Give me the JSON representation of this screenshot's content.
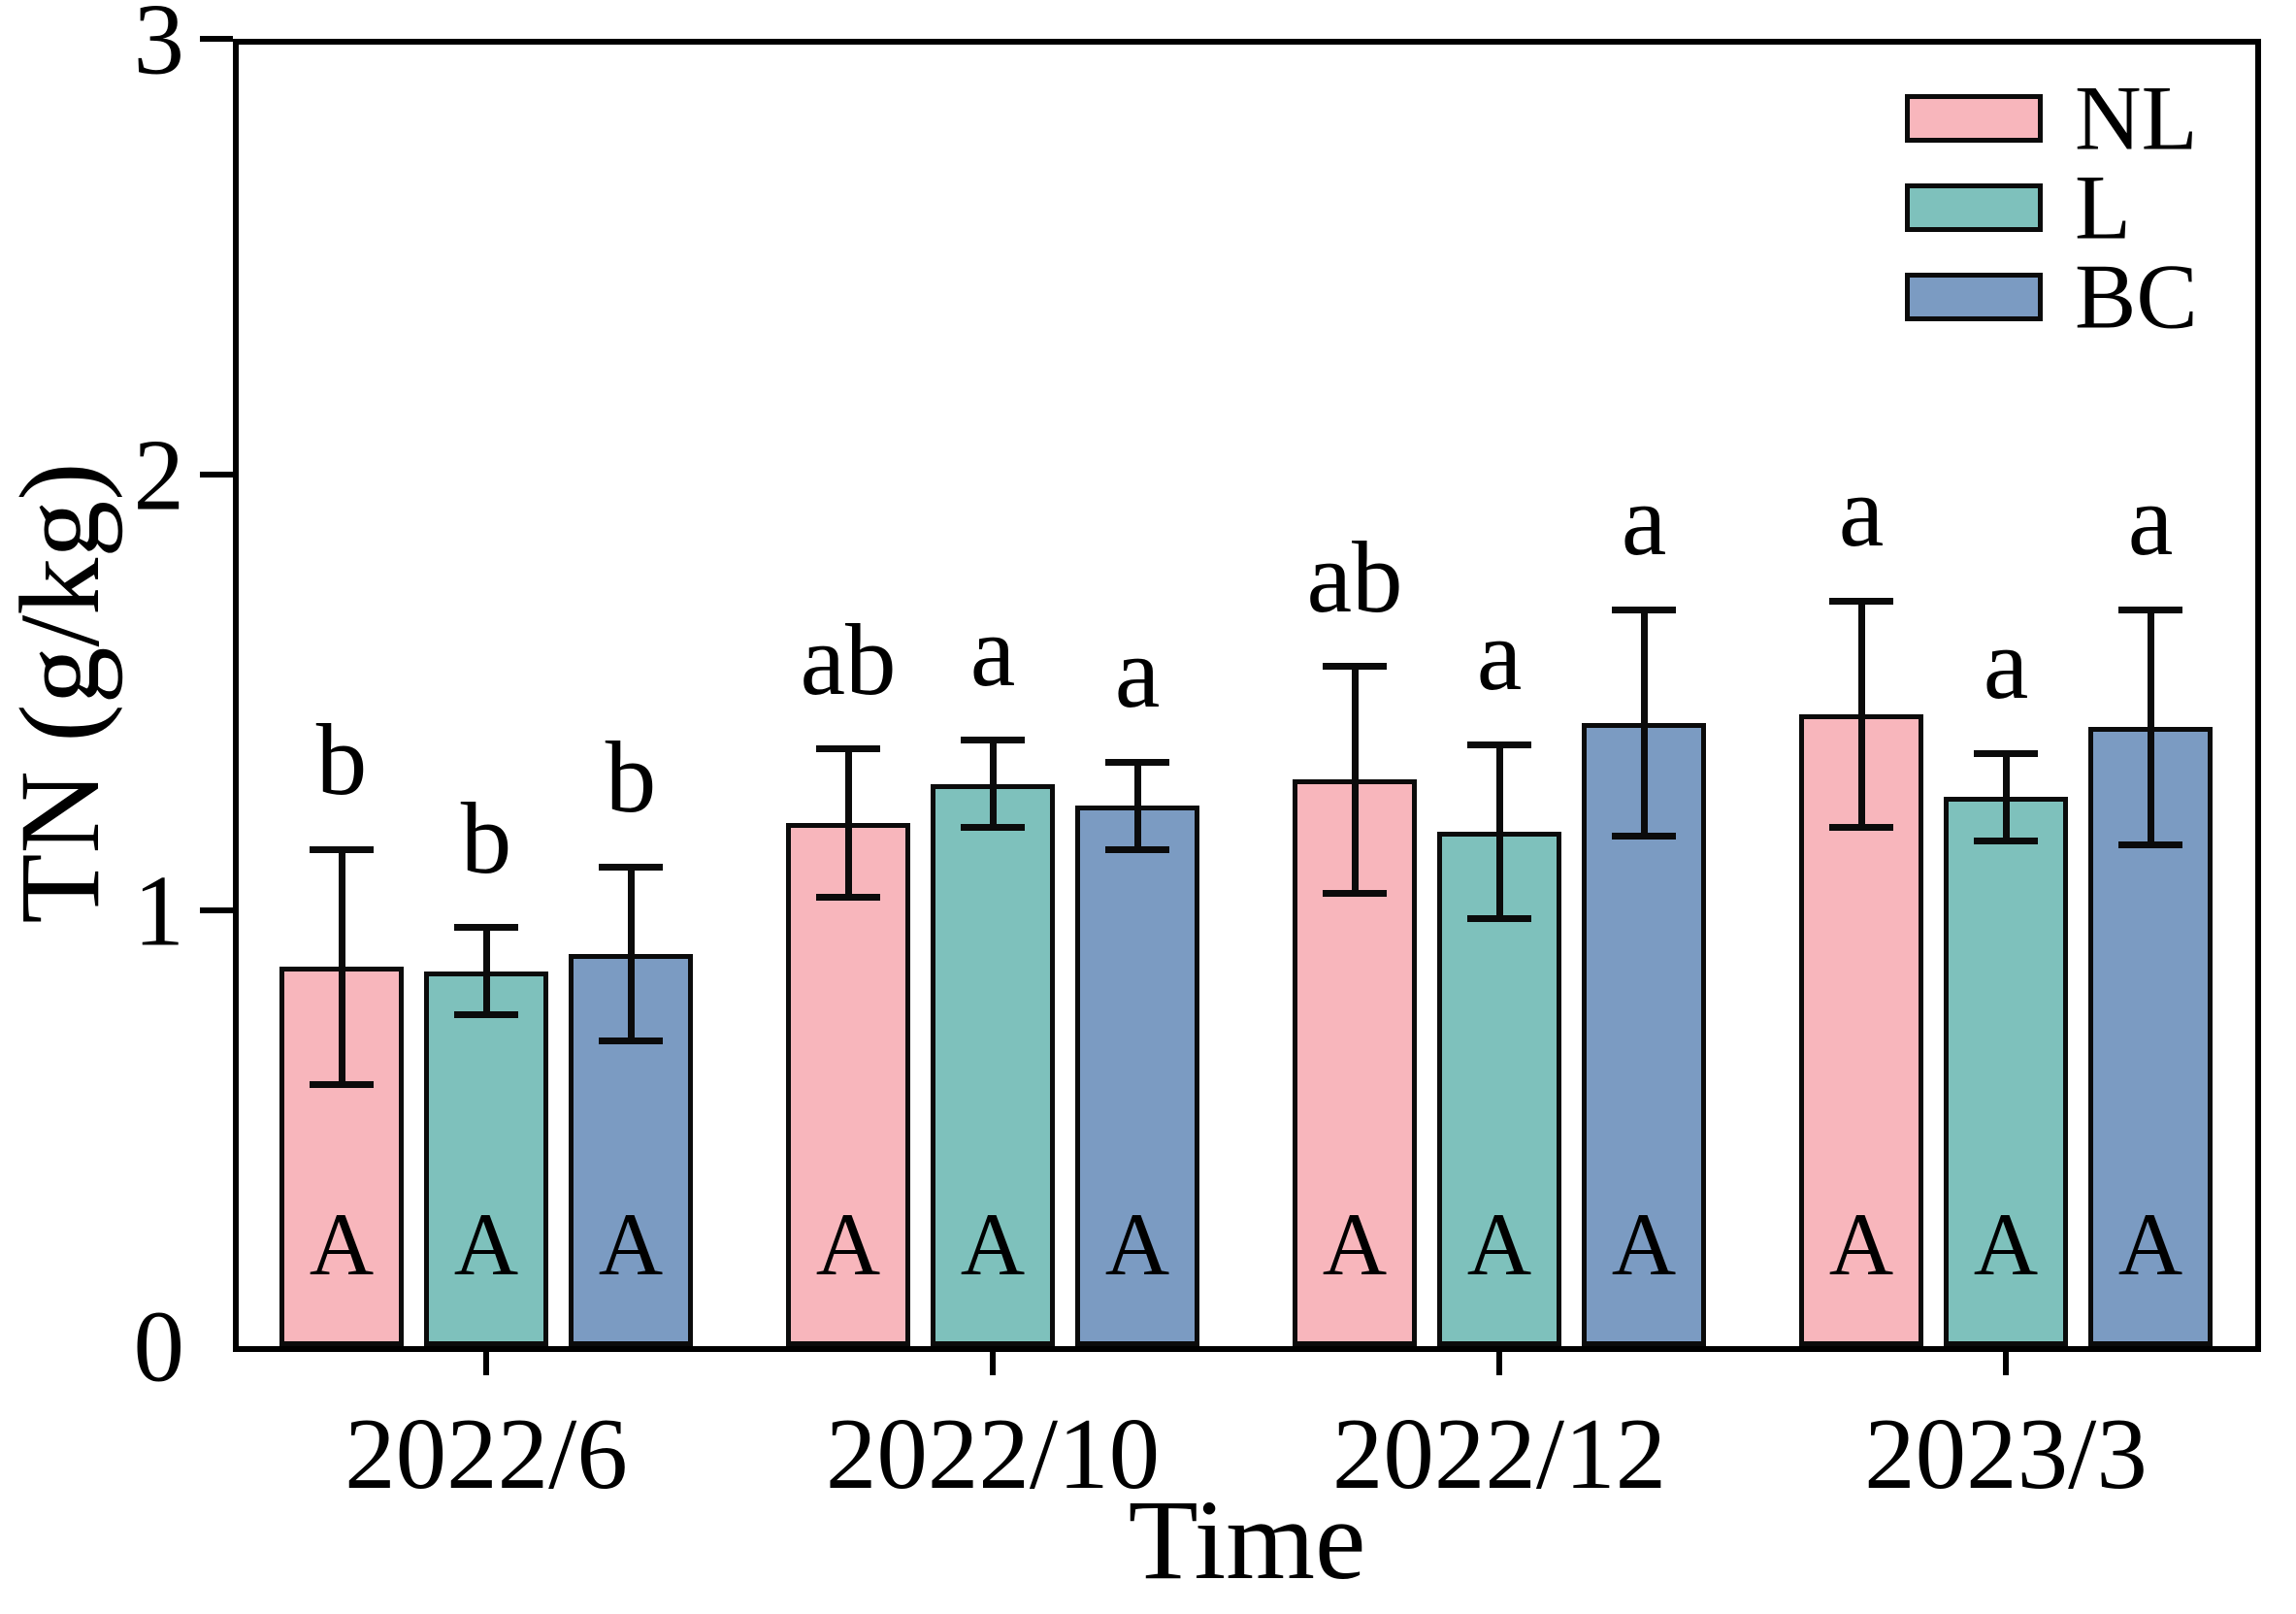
{
  "chart_data": {
    "type": "bar",
    "title": "",
    "xlabel": "Time",
    "ylabel": "TN (g/kg)",
    "ylim": [
      0,
      3
    ],
    "yticks": [
      0,
      1,
      2,
      3
    ],
    "categories": [
      "2022/6",
      "2022/10",
      "2022/12",
      "2023/3"
    ],
    "grid": false,
    "error_bars": true,
    "legend": {
      "position": "top-right",
      "entries": [
        "NL",
        "L",
        "BC"
      ]
    },
    "series": [
      {
        "name": "NL",
        "color": "#F8B6BC",
        "values": [
          0.87,
          1.2,
          1.3,
          1.45
        ],
        "errors": [
          0.27,
          0.17,
          0.26,
          0.26
        ],
        "letters_above": [
          "b",
          "ab",
          "ab",
          "a"
        ],
        "letters_inside": [
          "A",
          "A",
          "A",
          "A"
        ]
      },
      {
        "name": "L",
        "color": "#7EC1BC",
        "values": [
          0.86,
          1.29,
          1.18,
          1.26
        ],
        "errors": [
          0.1,
          0.1,
          0.2,
          0.1
        ],
        "letters_above": [
          "b",
          "a",
          "a",
          "a"
        ],
        "letters_inside": [
          "A",
          "A",
          "A",
          "A"
        ]
      },
      {
        "name": "BC",
        "color": "#7B9BC2",
        "values": [
          0.9,
          1.24,
          1.43,
          1.42
        ],
        "errors": [
          0.2,
          0.1,
          0.26,
          0.27
        ],
        "letters_above": [
          "b",
          "a",
          "a",
          "a"
        ],
        "letters_inside": [
          "A",
          "A",
          "A",
          "A"
        ]
      }
    ]
  }
}
